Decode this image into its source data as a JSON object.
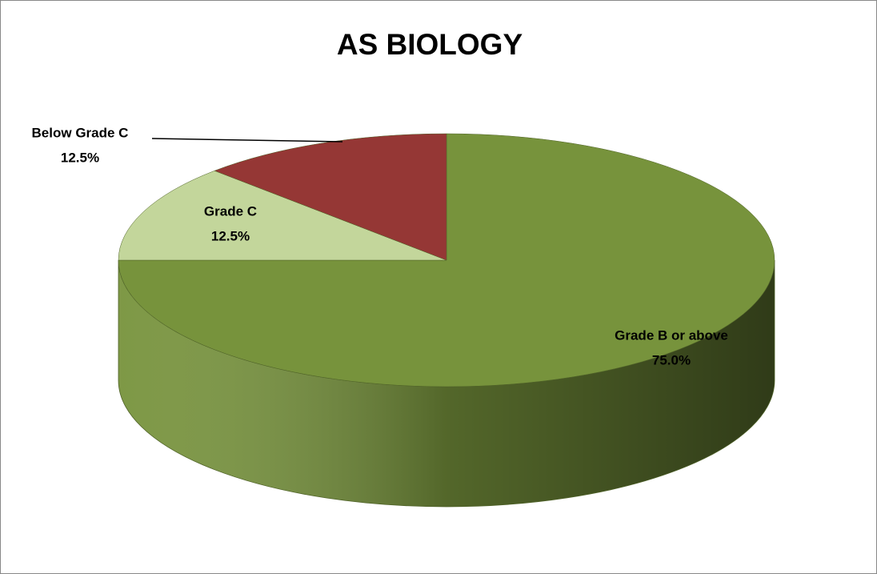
{
  "chart_data": {
    "type": "pie",
    "title": "AS BIOLOGY",
    "categories": [
      "Grade B or above",
      "Grade C",
      "Below Grade C"
    ],
    "values": [
      75,
      12.5,
      12.5
    ],
    "value_labels": [
      "75.0%",
      "12.5%",
      "12.5%"
    ],
    "colors": [
      "#77933c",
      "#c3d69b",
      "#953735"
    ]
  }
}
